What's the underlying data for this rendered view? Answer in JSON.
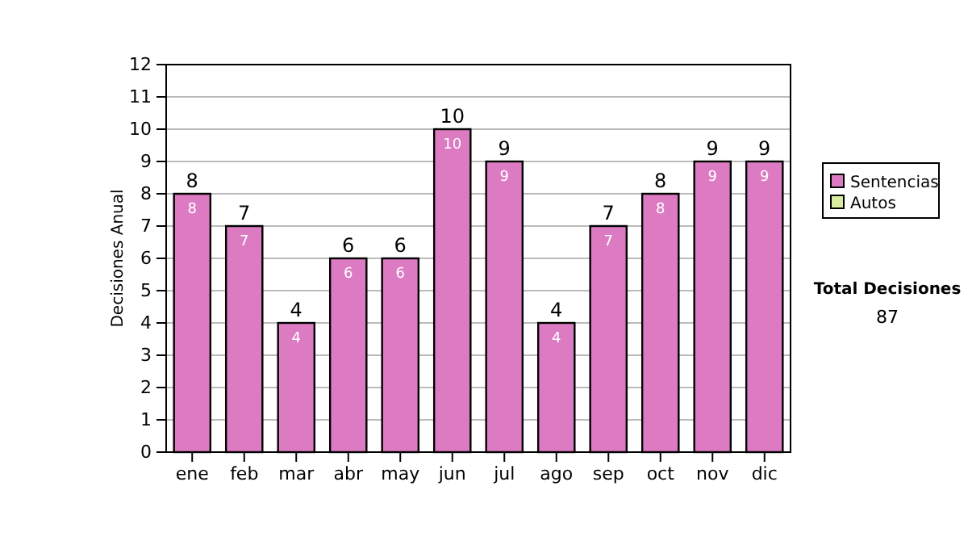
{
  "chart_data": {
    "type": "bar",
    "ylabel": "Decisiones Anual",
    "categories": [
      "ene",
      "feb",
      "mar",
      "abr",
      "may",
      "jun",
      "jul",
      "ago",
      "sep",
      "oct",
      "nov",
      "dic"
    ],
    "series": [
      {
        "name": "Sentencias",
        "color": "#dd7bc2",
        "values": [
          8,
          7,
          4,
          6,
          6,
          10,
          9,
          4,
          7,
          8,
          9,
          9
        ]
      },
      {
        "name": "Autos",
        "color": "#d9eca0",
        "values": [
          null,
          null,
          null,
          null,
          null,
          null,
          null,
          null,
          null,
          null,
          null,
          null
        ]
      }
    ],
    "stacked": true,
    "totals": [
      "8",
      "7",
      "4",
      "6",
      "6",
      "10",
      "9",
      "4",
      "7",
      "8",
      "9",
      "9"
    ],
    "data_labels": true,
    "ylim": [
      0,
      12
    ],
    "yticks": [
      0,
      1,
      2,
      3,
      4,
      5,
      6,
      7,
      8,
      9,
      10,
      11,
      12
    ],
    "grid": "y",
    "legend": "right",
    "annotations": [
      "Total Decisiones",
      "87"
    ]
  }
}
